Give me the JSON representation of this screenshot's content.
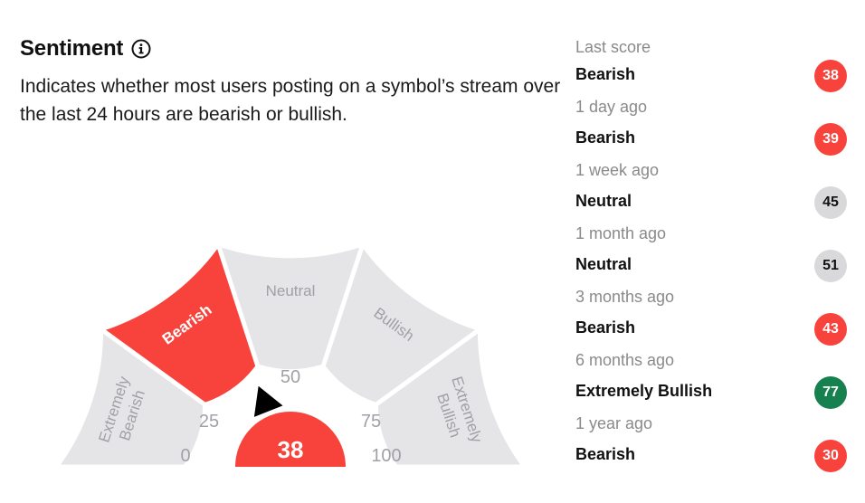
{
  "header": {
    "title": "Sentiment",
    "description": "Indicates whether most users posting on a symbol’s stream over the last 24 hours are bearish or bullish."
  },
  "gauge": {
    "score": 38,
    "score_color": "#f8433c",
    "segments": [
      {
        "label": "Extremely Bearish",
        "lines": [
          "Extremely",
          "Bearish"
        ],
        "active": false
      },
      {
        "label": "Bearish",
        "lines": [
          "Bearish"
        ],
        "active": true
      },
      {
        "label": "Neutral",
        "lines": [
          "Neutral"
        ],
        "active": false
      },
      {
        "label": "Bullish",
        "lines": [
          "Bullish"
        ],
        "active": false
      },
      {
        "label": "Extremely Bullish",
        "lines": [
          "Extremely",
          "Bullish"
        ],
        "active": false
      }
    ],
    "ticks": [
      "0",
      "25",
      "50",
      "75",
      "100"
    ],
    "colors": {
      "active": "#f8433c",
      "inactive": "#e5e5e8",
      "inactive_text": "#a0a0a6"
    }
  },
  "history": {
    "last_label": "Last score",
    "items": [
      {
        "when": "",
        "label": "Bearish",
        "score": "38",
        "color": "#f8433c",
        "text_color": "#ffffff"
      },
      {
        "when": "1 day ago",
        "label": "Bearish",
        "score": "39",
        "color": "#f8433c",
        "text_color": "#ffffff"
      },
      {
        "when": "1 week ago",
        "label": "Neutral",
        "score": "45",
        "color": "#d9d9dc",
        "text_color": "#111111"
      },
      {
        "when": "1 month ago",
        "label": "Neutral",
        "score": "51",
        "color": "#d9d9dc",
        "text_color": "#111111"
      },
      {
        "when": "3 months ago",
        "label": "Bearish",
        "score": "43",
        "color": "#f8433c",
        "text_color": "#ffffff"
      },
      {
        "when": "6 months ago",
        "label": "Extremely Bullish",
        "score": "77",
        "color": "#16804f",
        "text_color": "#ffffff"
      },
      {
        "when": "1 year ago",
        "label": "Bearish",
        "score": "30",
        "color": "#f8433c",
        "text_color": "#ffffff"
      }
    ]
  }
}
